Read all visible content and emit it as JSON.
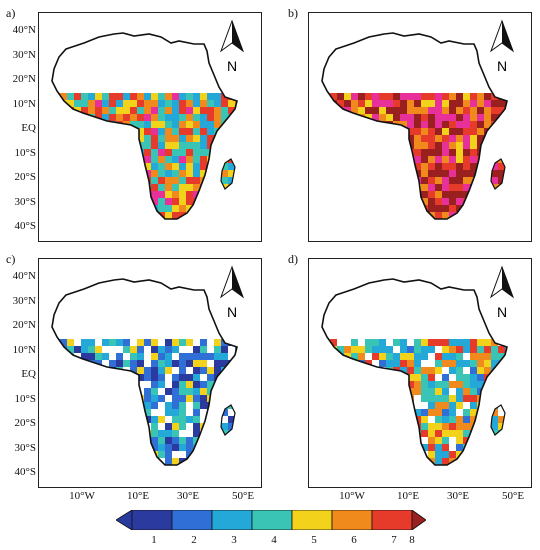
{
  "panels": [
    {
      "label": "a)",
      "coverage": "full",
      "intensity": 0.55
    },
    {
      "label": "b)",
      "coverage": "full",
      "intensity": 0.85
    },
    {
      "label": "c)",
      "coverage": "sparse",
      "intensity": 0.25
    },
    {
      "label": "d)",
      "coverage": "sparse",
      "intensity": 0.45
    }
  ],
  "lat_labels": [
    "40°N",
    "30°N",
    "20°N",
    "10°N",
    "EQ",
    "10°S",
    "20°S",
    "30°S",
    "40°S"
  ],
  "lon_labels": [
    "10°W",
    "10°E",
    "30°E",
    "50°E"
  ],
  "north_arrow": "N",
  "colorbar": {
    "ticks": [
      "1",
      "2",
      "3",
      "4",
      "5",
      "6",
      "7",
      "8"
    ],
    "colors": [
      "#2b3a9e",
      "#2f6fd6",
      "#23a8d8",
      "#39c4b5",
      "#f2d21a",
      "#f08a1c",
      "#e63a2a",
      "#e8309a",
      "#9a1f1f"
    ]
  }
}
